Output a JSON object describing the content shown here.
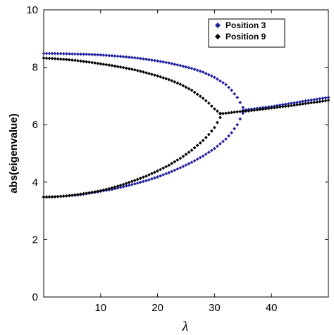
{
  "chart_data": {
    "type": "scatter",
    "xlabel": "λ",
    "ylabel": "abs(eigenvalue)",
    "xlim": [
      0,
      50
    ],
    "ylim": [
      0,
      10
    ],
    "xticks": [
      10,
      20,
      30,
      40
    ],
    "yticks": [
      0,
      2,
      4,
      6,
      8,
      10
    ],
    "grid": false,
    "legend_position": "top-right",
    "series": [
      {
        "name": "Position 3",
        "color": "#1f1fa0",
        "marker": "diamond",
        "branches": [
          {
            "x": [
              0,
              2,
              4,
              6,
              8,
              10,
              12,
              14,
              16,
              18,
              20,
              22,
              24,
              26,
              28,
              30,
              32,
              33,
              34,
              35
            ],
            "y": [
              8.48,
              8.48,
              8.47,
              8.46,
              8.45,
              8.43,
              8.4,
              8.37,
              8.33,
              8.28,
              8.22,
              8.15,
              8.06,
              7.96,
              7.83,
              7.65,
              7.4,
              7.2,
              6.95,
              6.6
            ]
          },
          {
            "x": [
              0,
              2,
              4,
              6,
              8,
              10,
              12,
              14,
              16,
              18,
              20,
              22,
              24,
              26,
              28,
              30,
              32,
              33,
              34,
              35
            ],
            "y": [
              3.48,
              3.49,
              3.52,
              3.55,
              3.61,
              3.68,
              3.75,
              3.84,
              3.94,
              4.05,
              4.18,
              4.33,
              4.5,
              4.69,
              4.91,
              5.17,
              5.5,
              5.72,
              6.0,
              6.4
            ]
          },
          {
            "x": [
              35,
              36,
              38,
              40,
              42,
              44,
              46,
              48,
              50
            ],
            "y": [
              6.5,
              6.53,
              6.58,
              6.63,
              6.7,
              6.76,
              6.83,
              6.89,
              6.95
            ]
          }
        ]
      },
      {
        "name": "Position 9",
        "color": "#000000",
        "marker": "diamond",
        "branches": [
          {
            "x": [
              0,
              2,
              4,
              6,
              8,
              10,
              12,
              14,
              16,
              18,
              20,
              22,
              24,
              26,
              28,
              29,
              30,
              31
            ],
            "y": [
              8.32,
              8.3,
              8.27,
              8.23,
              8.18,
              8.12,
              8.06,
              7.99,
              7.91,
              7.81,
              7.7,
              7.57,
              7.41,
              7.2,
              6.92,
              6.75,
              6.55,
              6.4
            ]
          },
          {
            "x": [
              0,
              2,
              4,
              6,
              8,
              10,
              12,
              14,
              16,
              18,
              20,
              22,
              24,
              26,
              28,
              29,
              30,
              31
            ],
            "y": [
              3.48,
              3.49,
              3.52,
              3.57,
              3.63,
              3.7,
              3.8,
              3.92,
              4.06,
              4.21,
              4.39,
              4.59,
              4.83,
              5.11,
              5.45,
              5.66,
              5.9,
              6.25
            ]
          },
          {
            "x": [
              31,
              32,
              34,
              36,
              38,
              40,
              42,
              44,
              46,
              48,
              50
            ],
            "y": [
              6.38,
              6.4,
              6.45,
              6.48,
              6.53,
              6.58,
              6.63,
              6.68,
              6.74,
              6.79,
              6.85
            ]
          }
        ]
      }
    ]
  }
}
